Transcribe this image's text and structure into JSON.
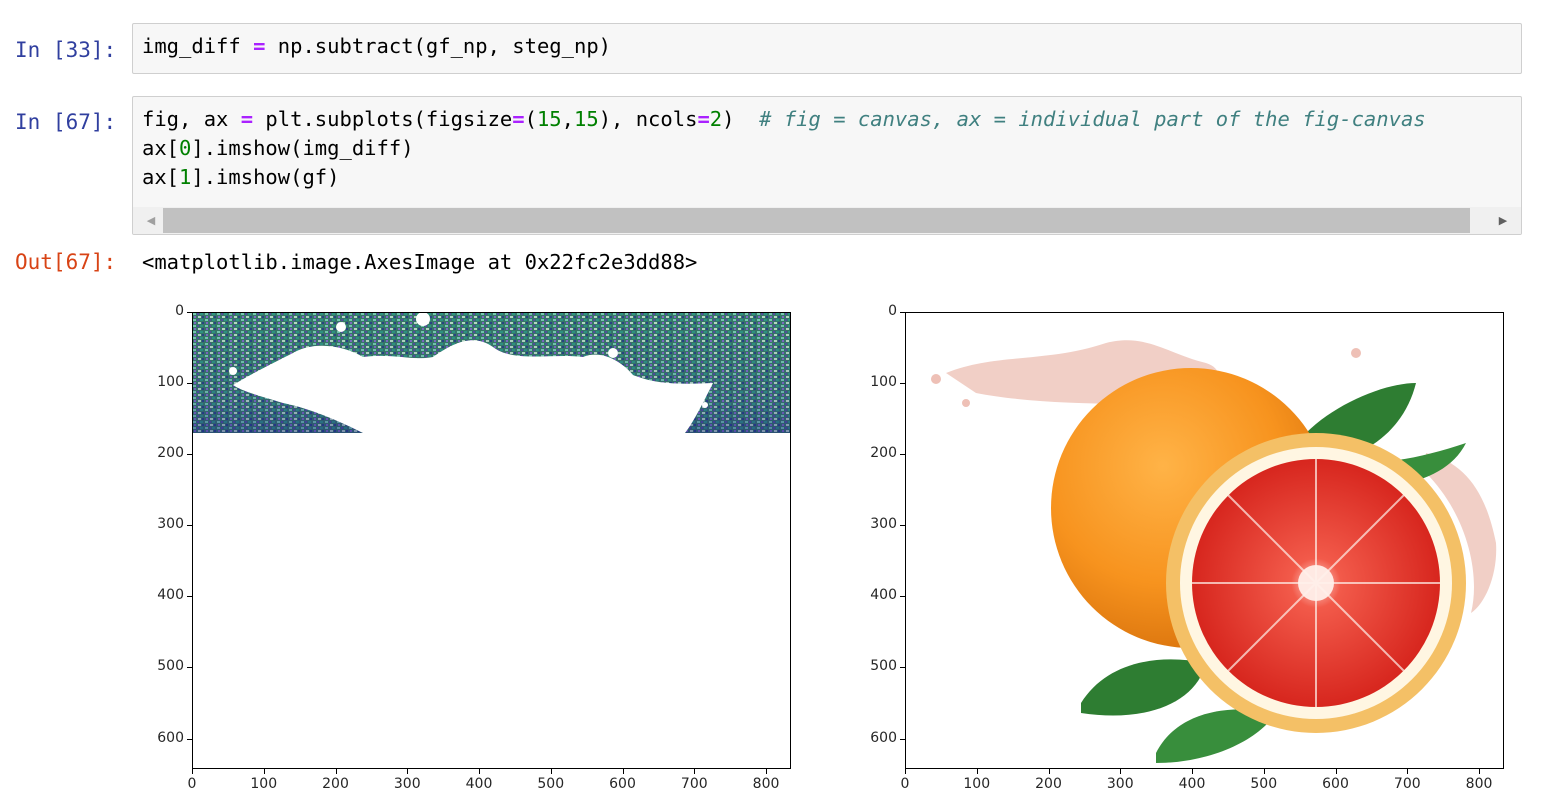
{
  "cells": [
    {
      "prompt": "In [33]:",
      "code_line": [
        {
          "t": "img_diff ",
          "c": ""
        },
        {
          "t": "=",
          "c": "op"
        },
        {
          "t": " np.subtract(gf_np, steg_np)",
          "c": ""
        }
      ]
    },
    {
      "prompt": "In [67]:",
      "lines": [
        [
          {
            "t": "fig, ax ",
            "c": ""
          },
          {
            "t": "=",
            "c": "op"
          },
          {
            "t": " plt.subplots(figsize",
            "c": ""
          },
          {
            "t": "=",
            "c": "op"
          },
          {
            "t": "(",
            "c": ""
          },
          {
            "t": "15",
            "c": "num"
          },
          {
            "t": ",",
            "c": ""
          },
          {
            "t": "15",
            "c": "num"
          },
          {
            "t": "), ncols",
            "c": ""
          },
          {
            "t": "=",
            "c": "op"
          },
          {
            "t": "2",
            "c": "num"
          },
          {
            "t": ")  ",
            "c": ""
          },
          {
            "t": "# fig = canvas, ax = individual part of the fig-canvas",
            "c": "com"
          }
        ],
        [
          {
            "t": "ax[",
            "c": ""
          },
          {
            "t": "0",
            "c": "num"
          },
          {
            "t": "].imshow(img_diff)",
            "c": ""
          }
        ],
        [
          {
            "t": "ax[",
            "c": ""
          },
          {
            "t": "1",
            "c": "num"
          },
          {
            "t": "].imshow(gf)",
            "c": ""
          }
        ]
      ],
      "output_prompt": "Out[67]:",
      "output_text": "<matplotlib.image.AxesImage at 0x22fc2e3dd88>"
    }
  ],
  "colors": {
    "in_prompt": "#303f9f",
    "out_prompt": "#d84315",
    "operator": "#aa22ff",
    "number": "#008000",
    "comment": "#408080"
  },
  "chart_data": [
    {
      "type": "image",
      "title": "",
      "content": "img_diff: noisy multicolored band across the top rows with a white splash silhouette; remaining area white",
      "x_ticks": [
        "0",
        "100",
        "200",
        "300",
        "400",
        "500",
        "600",
        "700",
        "800"
      ],
      "y_ticks": [
        "0",
        "100",
        "200",
        "300",
        "400",
        "500",
        "600"
      ],
      "xlim": [
        0,
        832
      ],
      "ylim": [
        640,
        0
      ]
    },
    {
      "type": "image",
      "title": "",
      "content": "gf: whole grapefruit and halved grapefruit with green leaves and pink juice splash",
      "x_ticks": [
        "0",
        "100",
        "200",
        "300",
        "400",
        "500",
        "600",
        "700",
        "800"
      ],
      "y_ticks": [
        "0",
        "100",
        "200",
        "300",
        "400",
        "500",
        "600"
      ],
      "xlim": [
        0,
        832
      ],
      "ylim": [
        640,
        0
      ]
    }
  ]
}
